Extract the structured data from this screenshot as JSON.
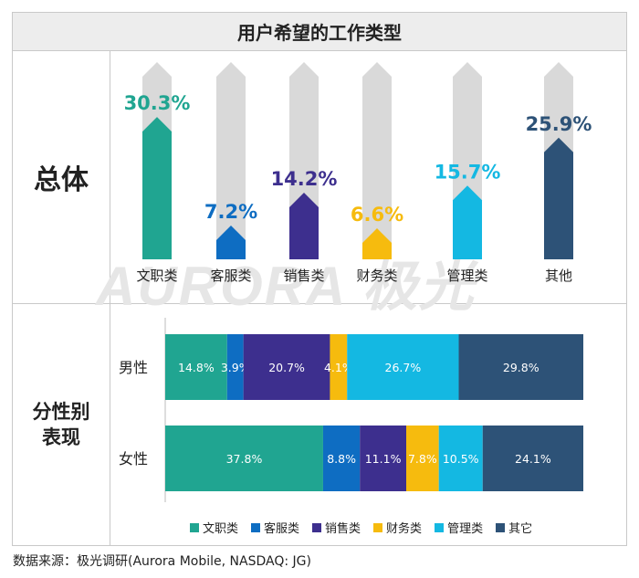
{
  "title": "用户希望的工作类型",
  "row_label_overall": "总体",
  "row_label_gender_line1": "分性别",
  "row_label_gender_line2": "表现",
  "watermark": "AURORA 极光",
  "source": "数据来源：极光调研(Aurora Mobile, NASDAQ: JG)",
  "colors": {
    "wenzhi": "#20a591",
    "kefu": "#0e6dc2",
    "xiaoshou": "#3d2f8e",
    "caiwu": "#f6bb0e",
    "guanli": "#14b8e2",
    "qita": "#2d5277",
    "track": "#d9d9d9"
  },
  "chart_data": [
    {
      "type": "bar",
      "title": "总体",
      "categories": [
        "文职类",
        "客服类",
        "销售类",
        "财务类",
        "管理类",
        "其他"
      ],
      "values": [
        30.3,
        7.2,
        14.2,
        6.6,
        15.7,
        25.9
      ],
      "labels": [
        "30.3%",
        "7.2%",
        "14.2%",
        "6.6%",
        "15.7%",
        "25.9%"
      ],
      "ylim": [
        0,
        35
      ]
    },
    {
      "type": "bar",
      "stacked": true,
      "orientation": "horizontal",
      "categories": [
        "男性",
        "女性"
      ],
      "series": [
        {
          "name": "文职类",
          "values": [
            14.8,
            37.8
          ],
          "labels": [
            "14.8%",
            "37.8%"
          ]
        },
        {
          "name": "客服类",
          "values": [
            3.9,
            8.8
          ],
          "labels": [
            "3.9%",
            "8.8%"
          ]
        },
        {
          "name": "销售类",
          "values": [
            20.7,
            11.1
          ],
          "labels": [
            "20.7%",
            "11.1%"
          ]
        },
        {
          "name": "财务类",
          "values": [
            4.1,
            7.8
          ],
          "labels": [
            "4.1%",
            "7.8%"
          ]
        },
        {
          "name": "管理类",
          "values": [
            26.7,
            10.5
          ],
          "labels": [
            "26.7%",
            "10.5%"
          ]
        },
        {
          "name": "其它",
          "values": [
            29.8,
            24.1
          ],
          "labels": [
            "29.8%",
            "24.1%"
          ]
        }
      ],
      "legend": [
        "文职类",
        "客服类",
        "销售类",
        "财务类",
        "管理类",
        "其它"
      ]
    }
  ]
}
